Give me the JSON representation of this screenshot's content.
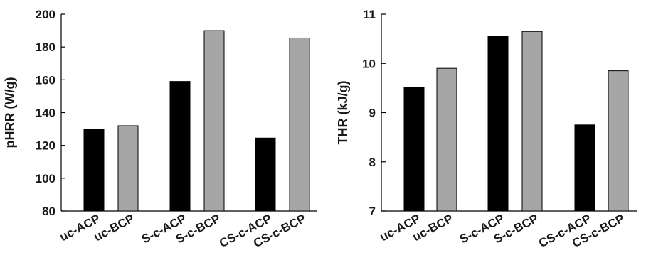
{
  "chart_data": [
    {
      "type": "bar",
      "categories": [
        "uc-ACP",
        "uc-BCP",
        "S-c-ACP",
        "S-c-BCP",
        "CS-c-ACP",
        "CS-c-BCP"
      ],
      "values": [
        130,
        132,
        159,
        190,
        124.5,
        185.5
      ],
      "bar_colors": [
        "#000000",
        "#a6a6a6",
        "#000000",
        "#a6a6a6",
        "#000000",
        "#a6a6a6"
      ],
      "title": "",
      "xlabel": "",
      "ylabel": "pHRR (W/g)",
      "ylim": [
        80,
        200
      ],
      "yticks": [
        "80",
        "100",
        "120",
        "140",
        "160",
        "180",
        "200"
      ],
      "grid": false,
      "legend": "none"
    },
    {
      "type": "bar",
      "categories": [
        "uc-ACP",
        "uc-BCP",
        "S-c-ACP",
        "S-c-BCP",
        "CS-c-ACP",
        "CS-c-BCP"
      ],
      "values": [
        9.52,
        9.9,
        10.55,
        10.65,
        8.75,
        9.85
      ],
      "bar_colors": [
        "#000000",
        "#a6a6a6",
        "#000000",
        "#a6a6a6",
        "#000000",
        "#a6a6a6"
      ],
      "title": "",
      "xlabel": "",
      "ylabel": "THR (kJ/g)",
      "ylim": [
        7,
        11
      ],
      "yticks": [
        "7",
        "8",
        "9",
        "10",
        "11"
      ],
      "grid": false,
      "legend": "none"
    }
  ]
}
